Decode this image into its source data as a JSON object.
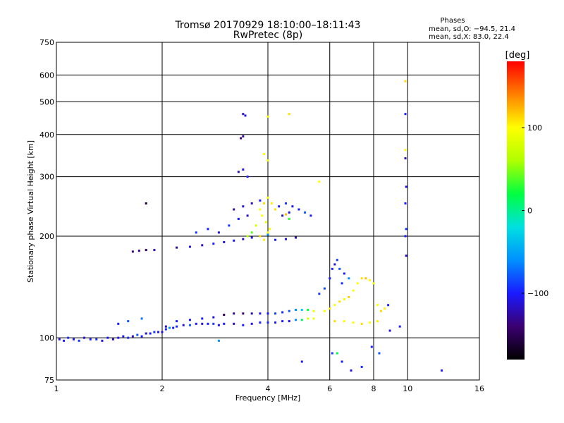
{
  "chart_data": {
    "type": "scatter",
    "title": "Tromsø 20170929 18:10:00–18:11:43",
    "subtitle": "RwPretec (8p)",
    "xlabel": "Frequency [MHz]",
    "ylabel": "Stationary phase Virtual Height [km]",
    "x_scale": "log",
    "y_scale": "log",
    "xlim": [
      1,
      16
    ],
    "ylim": [
      75,
      750
    ],
    "x_ticks": [
      1,
      2,
      4,
      6,
      8,
      10,
      16
    ],
    "x_tick_labels": [
      "1",
      "2",
      "4",
      "6",
      "8",
      "10",
      "16"
    ],
    "y_ticks": [
      75,
      100,
      200,
      300,
      400,
      500,
      600,
      750
    ],
    "y_tick_labels": [
      "75",
      "100",
      "200",
      "300",
      "400",
      "500",
      "600",
      "750"
    ],
    "grid": true,
    "stats": {
      "heading": "Phases",
      "line_o": "mean, sd,O: −94.5, 21.4",
      "line_x": "mean, sd,X:  83.0, 22.4"
    },
    "colorbar": {
      "label": "[deg]",
      "range": [
        -180,
        180
      ],
      "ticks": [
        -100,
        0,
        100
      ],
      "tick_labels": [
        "−100",
        "0",
        "100"
      ],
      "colors": [
        "#000000",
        "#3b0070",
        "#1a1aff",
        "#0090ff",
        "#00e0e0",
        "#00ff40",
        "#b0ff00",
        "#ffff00",
        "#ff8000",
        "#ff0000"
      ]
    },
    "series": [
      {
        "points": [
          [
            1.02,
            99,
            -110
          ],
          [
            1.05,
            98,
            -100
          ],
          [
            1.08,
            100,
            -95
          ],
          [
            1.12,
            99,
            -105
          ],
          [
            1.16,
            98,
            -90
          ],
          [
            1.2,
            100,
            -115
          ],
          [
            1.25,
            99,
            -100
          ],
          [
            1.3,
            99,
            -95
          ],
          [
            1.35,
            98,
            -110
          ],
          [
            1.4,
            100,
            -100
          ],
          [
            1.45,
            99,
            -120
          ],
          [
            1.5,
            100,
            -105
          ],
          [
            1.55,
            101,
            -100
          ],
          [
            1.6,
            100,
            -95
          ],
          [
            1.65,
            101,
            -110
          ],
          [
            1.7,
            102,
            -80
          ],
          [
            1.75,
            101,
            -100
          ],
          [
            1.8,
            103,
            -115
          ],
          [
            1.85,
            103,
            -100
          ],
          [
            1.9,
            104,
            -90
          ],
          [
            1.95,
            104,
            -105
          ],
          [
            2.0,
            104,
            -110
          ],
          [
            2.05,
            106,
            -100
          ],
          [
            2.1,
            107,
            -60
          ],
          [
            2.15,
            107,
            -100
          ],
          [
            2.2,
            108,
            -95
          ],
          [
            2.3,
            109,
            -110
          ],
          [
            2.4,
            109,
            -80
          ],
          [
            2.5,
            110,
            -100
          ],
          [
            2.6,
            110,
            -115
          ],
          [
            2.7,
            110,
            -100
          ],
          [
            2.8,
            110,
            -90
          ],
          [
            2.9,
            109,
            -105
          ],
          [
            3.0,
            110,
            -100
          ],
          [
            3.2,
            110,
            -120
          ],
          [
            3.4,
            109,
            -100
          ],
          [
            3.6,
            110,
            -110
          ],
          [
            3.8,
            111,
            -100
          ],
          [
            4.0,
            111,
            -95
          ],
          [
            4.2,
            111,
            -105
          ],
          [
            4.4,
            112,
            -100
          ],
          [
            4.6,
            112,
            -110
          ],
          [
            4.8,
            113,
            -60
          ],
          [
            5.0,
            113,
            10
          ],
          [
            5.2,
            114,
            80
          ],
          [
            5.4,
            114,
            90
          ]
        ]
      },
      {
        "points": [
          [
            1.5,
            110,
            -100
          ],
          [
            1.6,
            112,
            -80
          ],
          [
            1.75,
            114,
            -70
          ],
          [
            2.05,
            108,
            -120
          ],
          [
            2.2,
            112,
            -100
          ],
          [
            2.4,
            113,
            -105
          ],
          [
            2.6,
            114,
            -100
          ],
          [
            2.8,
            115,
            -110
          ],
          [
            3.0,
            117,
            -150
          ],
          [
            3.2,
            118,
            -130
          ],
          [
            3.4,
            118,
            -140
          ],
          [
            3.6,
            118,
            -120
          ],
          [
            3.8,
            118,
            -110
          ],
          [
            4.0,
            118,
            -100
          ],
          [
            4.2,
            118,
            -90
          ],
          [
            4.4,
            119,
            -95
          ],
          [
            4.6,
            120,
            -80
          ],
          [
            4.8,
            121,
            -60
          ],
          [
            5.0,
            121,
            -30
          ],
          [
            5.2,
            121,
            20
          ],
          [
            5.4,
            120,
            90
          ]
        ]
      },
      {
        "points": [
          [
            5.8,
            120,
            100
          ],
          [
            6.0,
            122,
            105
          ],
          [
            6.2,
            125,
            95
          ],
          [
            6.4,
            128,
            110
          ],
          [
            6.6,
            130,
            100
          ],
          [
            6.8,
            132,
            115
          ],
          [
            7.0,
            138,
            95
          ],
          [
            7.2,
            145,
            100
          ],
          [
            7.4,
            150,
            110
          ],
          [
            7.6,
            150,
            120
          ],
          [
            7.8,
            148,
            100
          ],
          [
            8.0,
            145,
            90
          ],
          [
            8.2,
            125,
            100
          ],
          [
            8.4,
            120,
            110
          ],
          [
            8.6,
            122,
            105
          ],
          [
            8.8,
            125,
            -100
          ],
          [
            6.2,
            112,
            110
          ],
          [
            6.6,
            112,
            100
          ],
          [
            7.0,
            111,
            95
          ],
          [
            7.4,
            110,
            110
          ],
          [
            7.8,
            111,
            100
          ],
          [
            8.2,
            112,
            105
          ]
        ]
      },
      {
        "points": [
          [
            5.6,
            135,
            -90
          ],
          [
            5.8,
            140,
            -85
          ],
          [
            6.0,
            150,
            -100
          ],
          [
            6.1,
            160,
            -95
          ],
          [
            6.2,
            165,
            -110
          ],
          [
            6.4,
            160,
            -80
          ],
          [
            6.6,
            155,
            -100
          ],
          [
            6.3,
            170,
            -90
          ],
          [
            6.5,
            145,
            -95
          ],
          [
            6.8,
            150,
            -60
          ]
        ]
      },
      {
        "points": [
          [
            1.65,
            180,
            -140
          ],
          [
            1.72,
            181,
            -130
          ],
          [
            1.8,
            182,
            -150
          ],
          [
            1.9,
            182,
            -120
          ],
          [
            2.2,
            185,
            -130
          ],
          [
            2.4,
            186,
            -110
          ],
          [
            2.6,
            188,
            -120
          ],
          [
            2.8,
            190,
            -100
          ],
          [
            3.0,
            192,
            -110
          ],
          [
            3.2,
            194,
            -100
          ],
          [
            3.4,
            196,
            -120
          ],
          [
            3.6,
            198,
            -110
          ],
          [
            3.8,
            200,
            -80
          ],
          [
            4.0,
            202,
            -60
          ],
          [
            4.2,
            195,
            -100
          ],
          [
            4.5,
            196,
            -110
          ],
          [
            4.8,
            198,
            -120
          ],
          [
            2.5,
            205,
            -90
          ],
          [
            2.7,
            210,
            -100
          ],
          [
            2.9,
            205,
            -110
          ],
          [
            3.1,
            215,
            -90
          ],
          [
            3.3,
            225,
            -100
          ],
          [
            3.5,
            230,
            -115
          ],
          [
            3.2,
            240,
            -130
          ],
          [
            3.4,
            245,
            -110
          ],
          [
            3.6,
            250,
            -120
          ],
          [
            3.8,
            255,
            -100
          ]
        ]
      },
      {
        "points": [
          [
            3.8,
            240,
            100
          ],
          [
            3.9,
            250,
            110
          ],
          [
            4.0,
            260,
            95
          ],
          [
            4.1,
            250,
            105
          ],
          [
            4.2,
            240,
            110
          ],
          [
            3.85,
            230,
            100
          ],
          [
            3.95,
            220,
            90
          ],
          [
            4.05,
            210,
            100
          ],
          [
            3.8,
            200,
            110
          ],
          [
            3.9,
            195,
            105
          ],
          [
            4.0,
            205,
            100
          ],
          [
            3.5,
            200,
            60
          ],
          [
            3.6,
            205,
            40
          ],
          [
            3.7,
            215,
            80
          ],
          [
            4.0,
            335,
            95
          ],
          [
            3.9,
            350,
            100
          ],
          [
            4.5,
            232,
            120
          ],
          [
            4.6,
            225,
            30
          ]
        ]
      },
      {
        "points": [
          [
            3.3,
            310,
            -120
          ],
          [
            3.4,
            315,
            -110
          ],
          [
            3.5,
            300,
            -100
          ],
          [
            3.35,
            390,
            -140
          ],
          [
            3.4,
            395,
            -130
          ],
          [
            3.4,
            460,
            -120
          ],
          [
            3.45,
            455,
            -110
          ],
          [
            4.3,
            245,
            -100
          ],
          [
            4.5,
            250,
            -90
          ],
          [
            4.7,
            245,
            -110
          ],
          [
            4.9,
            240,
            -100
          ],
          [
            5.1,
            235,
            -80
          ],
          [
            5.3,
            230,
            -100
          ],
          [
            4.4,
            230,
            -120
          ],
          [
            4.6,
            235,
            -110
          ]
        ]
      },
      {
        "points": [
          [
            9.85,
            575,
            110
          ],
          [
            9.85,
            460,
            -100
          ],
          [
            9.85,
            340,
            -120
          ],
          [
            9.9,
            280,
            -110
          ],
          [
            9.85,
            250,
            -100
          ],
          [
            9.9,
            210,
            -90
          ],
          [
            9.85,
            200,
            -100
          ],
          [
            9.9,
            175,
            -120
          ],
          [
            9.85,
            360,
            100
          ]
        ]
      },
      {
        "points": [
          [
            5.0,
            85,
            -100
          ],
          [
            6.1,
            90,
            -90
          ],
          [
            6.5,
            85,
            -100
          ],
          [
            6.9,
            80,
            -110
          ],
          [
            7.4,
            82,
            -95
          ],
          [
            7.9,
            94,
            -100
          ],
          [
            8.3,
            90,
            -80
          ],
          [
            12.5,
            80,
            -100
          ],
          [
            2.9,
            98,
            -60
          ],
          [
            1.8,
            250,
            -160
          ],
          [
            4.6,
            460,
            110
          ],
          [
            4.0,
            452,
            100
          ],
          [
            5.6,
            290,
            100
          ],
          [
            6.3,
            90,
            20
          ],
          [
            8.9,
            105,
            -110
          ],
          [
            9.5,
            108,
            -100
          ]
        ]
      }
    ]
  }
}
